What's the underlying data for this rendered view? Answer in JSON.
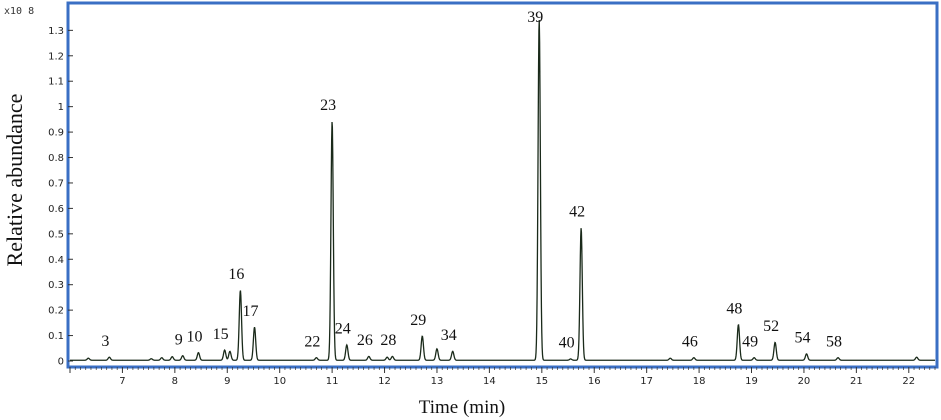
{
  "chart_data": {
    "type": "line",
    "title": "",
    "xlabel": "Time (min)",
    "ylabel": "Relative abundance",
    "y_multiplier_label": "x10 8",
    "xlim": [
      6,
      22.5
    ],
    "ylim": [
      0,
      1.38
    ],
    "x_ticks": [
      7,
      8,
      9,
      10,
      11,
      12,
      13,
      14,
      15,
      16,
      17,
      18,
      19,
      20,
      21,
      22
    ],
    "y_ticks": [
      "0",
      "0.1",
      "0.2",
      "0.3",
      "0.4",
      "0.5",
      "0.6",
      "0.7",
      "0.8",
      "0.9",
      "1",
      "1.1",
      "1.2",
      "1.3"
    ],
    "grid": false,
    "frame_color": "#3a6fc4",
    "line_color": "#1a2a1a",
    "peaks": [
      {
        "label": "3",
        "x": 6.75,
        "y": 0.012
      },
      {
        "label": "9",
        "x": 8.15,
        "y": 0.018
      },
      {
        "label": "10",
        "x": 8.45,
        "y": 0.03
      },
      {
        "label": "15",
        "x": 8.95,
        "y": 0.04
      },
      {
        "label": "16",
        "x": 9.25,
        "y": 0.275
      },
      {
        "label": "17",
        "x": 9.52,
        "y": 0.13
      },
      {
        "label": "22",
        "x": 10.7,
        "y": 0.01
      },
      {
        "label": "23",
        "x": 11.0,
        "y": 0.94
      },
      {
        "label": "24",
        "x": 11.28,
        "y": 0.06
      },
      {
        "label": "26",
        "x": 11.7,
        "y": 0.015
      },
      {
        "label": "28",
        "x": 12.15,
        "y": 0.015
      },
      {
        "label": "29",
        "x": 12.72,
        "y": 0.095
      },
      {
        "label": "34",
        "x": 13.3,
        "y": 0.035
      },
      {
        "label": "39",
        "x": 14.95,
        "y": 1.34
      },
      {
        "label": "40",
        "x": 15.55,
        "y": 0.005
      },
      {
        "label": "42",
        "x": 15.75,
        "y": 0.52
      },
      {
        "label": "46",
        "x": 17.9,
        "y": 0.01
      },
      {
        "label": "48",
        "x": 18.75,
        "y": 0.14
      },
      {
        "label": "49",
        "x": 19.05,
        "y": 0.01
      },
      {
        "label": "52",
        "x": 19.45,
        "y": 0.07
      },
      {
        "label": "54",
        "x": 20.05,
        "y": 0.025
      },
      {
        "label": "58",
        "x": 20.65,
        "y": 0.01
      }
    ],
    "minor_peaks": [
      {
        "x": 6.35,
        "y": 0.008
      },
      {
        "x": 7.55,
        "y": 0.006
      },
      {
        "x": 7.75,
        "y": 0.01
      },
      {
        "x": 7.95,
        "y": 0.014
      },
      {
        "x": 9.05,
        "y": 0.035
      },
      {
        "x": 12.05,
        "y": 0.012
      },
      {
        "x": 13.0,
        "y": 0.045
      },
      {
        "x": 17.45,
        "y": 0.008
      },
      {
        "x": 22.15,
        "y": 0.012
      }
    ]
  }
}
